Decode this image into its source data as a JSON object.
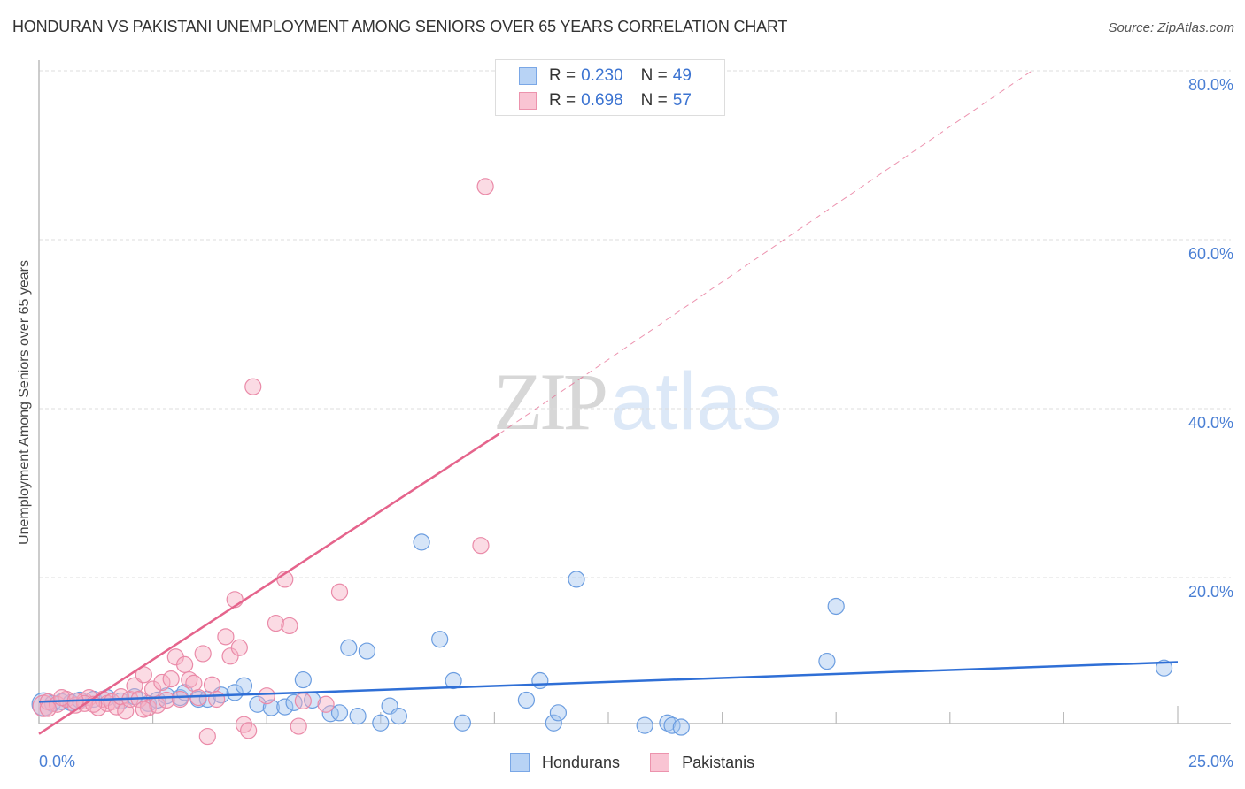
{
  "header": {
    "title": "HONDURAN VS PAKISTANI UNEMPLOYMENT AMONG SENIORS OVER 65 YEARS CORRELATION CHART",
    "source": "Source: ZipAtlas.com"
  },
  "watermark": {
    "zip": "ZIP",
    "atlas": "atlas"
  },
  "legend_top": {
    "rows": [
      {
        "r_label": "R =",
        "r_value": "0.230",
        "n_label": "N =",
        "n_value": "49",
        "fill": "#b8d3f5",
        "stroke": "#7aa7e6"
      },
      {
        "r_label": "R =",
        "r_value": "0.698",
        "n_label": "N =",
        "n_value": "57",
        "fill": "#f9c4d3",
        "stroke": "#ec93ad"
      }
    ]
  },
  "legend_bottom": {
    "items": [
      {
        "label": "Hondurans",
        "fill": "#b8d3f5",
        "stroke": "#7aa7e6"
      },
      {
        "label": "Pakistanis",
        "fill": "#f9c4d3",
        "stroke": "#ec93ad"
      }
    ]
  },
  "axes": {
    "y_label": "Unemployment Among Seniors over 65 years",
    "y_ticks": [
      "80.0%",
      "60.0%",
      "40.0%",
      "20.0%"
    ],
    "x_min_label": "0.0%",
    "x_max_label": "25.0%"
  },
  "colors": {
    "blue_line": "#2f6fd6",
    "pink_line": "#e5648c",
    "blue_fill": "rgba(164,198,240,0.45)",
    "blue_stroke": "#6b9de0",
    "pink_fill": "rgba(246,176,196,0.45)",
    "pink_stroke": "#ea8aa8",
    "grid": "#dddddd",
    "axis": "#bbbbbb",
    "tick_label": "#4a7fd4"
  },
  "chart_data": {
    "type": "scatter",
    "title": "HONDURAN VS PAKISTANI UNEMPLOYMENT AMONG SENIORS OVER 65 YEARS CORRELATION CHART",
    "xlabel": "",
    "ylabel": "Unemployment Among Seniors over 65 years",
    "xlim": [
      0,
      25
    ],
    "ylim": [
      2.7,
      82
    ],
    "grid": true,
    "legend_position": "top-center",
    "series": [
      {
        "name": "Hondurans",
        "r": 0.23,
        "n": 49,
        "trend": {
          "x": [
            0,
            25
          ],
          "y": [
            5.3,
            10.0
          ]
        },
        "points": [
          [
            0.1,
            5.0
          ],
          [
            0.3,
            5.1
          ],
          [
            0.5,
            5.3
          ],
          [
            0.7,
            5.2
          ],
          [
            0.9,
            5.5
          ],
          [
            1.2,
            5.6
          ],
          [
            1.5,
            5.8
          ],
          [
            1.8,
            5.4
          ],
          [
            2.1,
            5.9
          ],
          [
            2.4,
            5.1
          ],
          [
            2.6,
            5.5
          ],
          [
            2.8,
            6.0
          ],
          [
            3.1,
            5.8
          ],
          [
            3.2,
            6.4
          ],
          [
            3.5,
            5.6
          ],
          [
            3.7,
            5.6
          ],
          [
            4.0,
            6.1
          ],
          [
            4.3,
            6.4
          ],
          [
            4.5,
            7.2
          ],
          [
            4.8,
            5.0
          ],
          [
            5.1,
            4.6
          ],
          [
            5.4,
            4.7
          ],
          [
            5.6,
            5.2
          ],
          [
            5.8,
            7.9
          ],
          [
            6.0,
            5.5
          ],
          [
            6.4,
            3.9
          ],
          [
            6.6,
            4.0
          ],
          [
            6.8,
            11.7
          ],
          [
            7.0,
            3.6
          ],
          [
            7.2,
            11.3
          ],
          [
            7.5,
            2.8
          ],
          [
            7.7,
            4.8
          ],
          [
            7.9,
            3.6
          ],
          [
            8.4,
            24.2
          ],
          [
            8.8,
            12.7
          ],
          [
            9.1,
            7.8
          ],
          [
            9.3,
            2.8
          ],
          [
            10.7,
            5.5
          ],
          [
            11.0,
            7.8
          ],
          [
            11.3,
            2.8
          ],
          [
            11.4,
            4.0
          ],
          [
            11.8,
            19.8
          ],
          [
            13.3,
            2.5
          ],
          [
            13.8,
            2.8
          ],
          [
            13.9,
            2.5
          ],
          [
            14.1,
            2.3
          ],
          [
            17.3,
            10.1
          ],
          [
            17.5,
            16.6
          ],
          [
            24.7,
            9.3
          ]
        ]
      },
      {
        "name": "Pakistanis",
        "r": 0.698,
        "n": 57,
        "trend": {
          "x": [
            0,
            10.1
          ],
          "y": [
            1.5,
            37.0
          ]
        },
        "trend_extrapolated": {
          "x": [
            10.1,
            21.8
          ],
          "y": [
            37.0,
            80.0
          ]
        },
        "points": [
          [
            0.1,
            4.8
          ],
          [
            0.2,
            5.3
          ],
          [
            0.4,
            5.0
          ],
          [
            0.6,
            5.6
          ],
          [
            0.8,
            4.9
          ],
          [
            1.0,
            5.4
          ],
          [
            1.1,
            5.8
          ],
          [
            1.3,
            4.6
          ],
          [
            1.4,
            5.6
          ],
          [
            1.5,
            5.1
          ],
          [
            1.6,
            5.3
          ],
          [
            1.7,
            4.7
          ],
          [
            1.8,
            5.9
          ],
          [
            1.9,
            4.2
          ],
          [
            2.0,
            5.6
          ],
          [
            2.1,
            7.2
          ],
          [
            2.2,
            5.6
          ],
          [
            2.3,
            8.5
          ],
          [
            2.4,
            4.6
          ],
          [
            2.5,
            6.8
          ],
          [
            2.6,
            4.9
          ],
          [
            2.7,
            7.6
          ],
          [
            2.8,
            5.5
          ],
          [
            2.9,
            8.0
          ],
          [
            3.0,
            10.6
          ],
          [
            3.1,
            5.6
          ],
          [
            3.2,
            9.7
          ],
          [
            3.3,
            7.9
          ],
          [
            3.4,
            7.5
          ],
          [
            3.5,
            5.8
          ],
          [
            3.6,
            11.0
          ],
          [
            3.7,
            1.2
          ],
          [
            3.8,
            7.3
          ],
          [
            3.9,
            5.6
          ],
          [
            4.1,
            13.0
          ],
          [
            4.2,
            10.7
          ],
          [
            4.3,
            17.4
          ],
          [
            4.4,
            11.7
          ],
          [
            4.5,
            2.6
          ],
          [
            4.6,
            1.9
          ],
          [
            4.7,
            42.6
          ],
          [
            5.0,
            6.0
          ],
          [
            5.2,
            14.6
          ],
          [
            5.4,
            19.8
          ],
          [
            5.5,
            14.3
          ],
          [
            5.7,
            2.4
          ],
          [
            5.8,
            5.4
          ],
          [
            6.3,
            5.0
          ],
          [
            6.6,
            18.3
          ],
          [
            9.7,
            23.8
          ],
          [
            9.8,
            66.3
          ],
          [
            0.2,
            4.5
          ],
          [
            0.5,
            5.8
          ],
          [
            1.0,
            5.1
          ],
          [
            2.3,
            4.4
          ],
          [
            1.2,
            5.0
          ],
          [
            0.8,
            5.4
          ]
        ]
      }
    ]
  }
}
